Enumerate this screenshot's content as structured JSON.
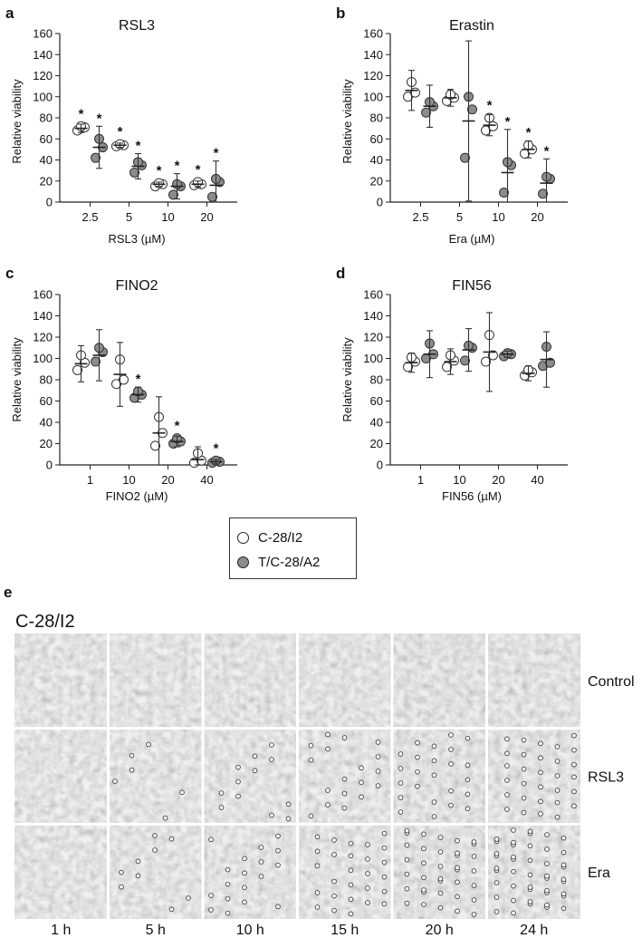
{
  "colors": {
    "open_marker": "#ffffff",
    "filled_marker": "#8c8c8c",
    "axis": "#222222"
  },
  "legend": {
    "items": [
      {
        "label": "C-28/I2",
        "style": "open"
      },
      {
        "label": "T/C-28/A2",
        "style": "filled"
      }
    ]
  },
  "chart_data": [
    {
      "panel": "a",
      "type": "scatter",
      "title": "RSL3",
      "xlabel": "RSL3 (µM)",
      "ylabel": "Relative viability",
      "ylim": [
        0,
        160
      ],
      "yticks": [
        "0",
        "20",
        "40",
        "60",
        "80",
        "100",
        "120",
        "140",
        "160"
      ],
      "categories": [
        "2.5",
        "5",
        "10",
        "20"
      ],
      "series": [
        {
          "name": "C-28/I2",
          "style": "open",
          "points": [
            [
              68,
              71,
              72
            ],
            [
              53,
              54,
              55
            ],
            [
              15,
              17,
              18
            ],
            [
              16,
              17,
              19
            ]
          ],
          "mean": [
            70,
            54,
            17,
            17
          ],
          "err": [
            4,
            2,
            2,
            3
          ],
          "sig": [
            true,
            true,
            true,
            true
          ]
        },
        {
          "name": "T/C-28/A2",
          "style": "filled",
          "points": [
            [
              42,
              52,
              60
            ],
            [
              28,
              35,
              38
            ],
            [
              7,
              15,
              17
            ],
            [
              5,
              19,
              22
            ]
          ],
          "mean": [
            52,
            34,
            15,
            16
          ],
          "err": [
            20,
            12,
            12,
            23
          ],
          "sig": [
            true,
            true,
            true,
            true
          ]
        }
      ]
    },
    {
      "panel": "b",
      "type": "scatter",
      "title": "Erastin",
      "xlabel": "Era (µM)",
      "ylabel": "Relative viability",
      "ylim": [
        0,
        160
      ],
      "yticks": [
        "0",
        "20",
        "40",
        "60",
        "80",
        "100",
        "120",
        "140",
        "160"
      ],
      "categories": [
        "2.5",
        "5",
        "10",
        "20"
      ],
      "series": [
        {
          "name": "C-28/I2",
          "style": "open",
          "points": [
            [
              100,
              104,
              114
            ],
            [
              96,
              99,
              102
            ],
            [
              68,
              72,
              80
            ],
            [
              46,
              50,
              54
            ]
          ],
          "mean": [
            106,
            99,
            73,
            50
          ],
          "err": [
            19,
            8,
            10,
            8
          ],
          "sig": [
            false,
            false,
            true,
            true
          ]
        },
        {
          "name": "T/C-28/A2",
          "style": "filled",
          "points": [
            [
              85,
              91,
              95
            ],
            [
              42,
              88,
              100
            ],
            [
              9,
              35,
              38
            ],
            [
              8,
              22,
              24
            ]
          ],
          "mean": [
            91,
            77,
            28,
            18
          ],
          "err": [
            20,
            76,
            41,
            23
          ],
          "sig": [
            false,
            false,
            true,
            true
          ]
        }
      ]
    },
    {
      "panel": "c",
      "type": "scatter",
      "title": "FINO2",
      "xlabel": "FINO2 (µM)",
      "ylabel": "Relative viability",
      "ylim": [
        0,
        160
      ],
      "yticks": [
        "0",
        "20",
        "40",
        "60",
        "80",
        "100",
        "120",
        "140",
        "160"
      ],
      "categories": [
        "1",
        "10",
        "20",
        "40"
      ],
      "series": [
        {
          "name": "C-28/I2",
          "style": "open",
          "points": [
            [
              89,
              96,
              103
            ],
            [
              76,
              80,
              99
            ],
            [
              18,
              30,
              45
            ],
            [
              2,
              4,
              11
            ]
          ],
          "mean": [
            95,
            85,
            30,
            5
          ],
          "err": [
            17,
            30,
            34,
            12
          ],
          "sig": [
            false,
            false,
            false,
            false
          ]
        },
        {
          "name": "T/C-28/A2",
          "style": "filled",
          "points": [
            [
              97,
              106,
              110
            ],
            [
              63,
              66,
              69
            ],
            [
              20,
              22,
              25
            ],
            [
              2,
              3,
              4
            ]
          ],
          "mean": [
            103,
            66,
            22,
            3
          ],
          "err": [
            24,
            7,
            5,
            2
          ],
          "sig": [
            false,
            true,
            true,
            true
          ]
        }
      ]
    },
    {
      "panel": "d",
      "type": "scatter",
      "title": "FIN56",
      "xlabel": "FIN56 (µM)",
      "ylabel": "Relative viability",
      "ylim": [
        0,
        160
      ],
      "yticks": [
        "0",
        "20",
        "40",
        "60",
        "80",
        "100",
        "120",
        "140",
        "160"
      ],
      "categories": [
        "1",
        "10",
        "20",
        "40"
      ],
      "series": [
        {
          "name": "C-28/I2",
          "style": "open",
          "points": [
            [
              92,
              97,
              101
            ],
            [
              92,
              98,
              103
            ],
            [
              97,
              103,
              122
            ],
            [
              84,
              87,
              89
            ]
          ],
          "mean": [
            96,
            97,
            106,
            86
          ],
          "err": [
            9,
            12,
            37,
            7
          ],
          "sig": [
            false,
            false,
            false,
            false
          ]
        },
        {
          "name": "T/C-28/A2",
          "style": "filled",
          "points": [
            [
              100,
              104,
              114
            ],
            [
              98,
              110,
              112
            ],
            [
              102,
              104,
              105
            ],
            [
              93,
              96,
              111
            ]
          ],
          "mean": [
            104,
            108,
            104,
            99
          ],
          "err": [
            22,
            20,
            3,
            26
          ],
          "sig": [
            false,
            false,
            false,
            false
          ]
        }
      ]
    }
  ],
  "micrographs": {
    "panel": "e",
    "cell_line": "C-28/I2",
    "rows": [
      "Control",
      "RSL3",
      "Era"
    ],
    "columns": [
      "1 h",
      "5 h",
      "10 h",
      "15 h",
      "20 h",
      "24 h"
    ]
  }
}
